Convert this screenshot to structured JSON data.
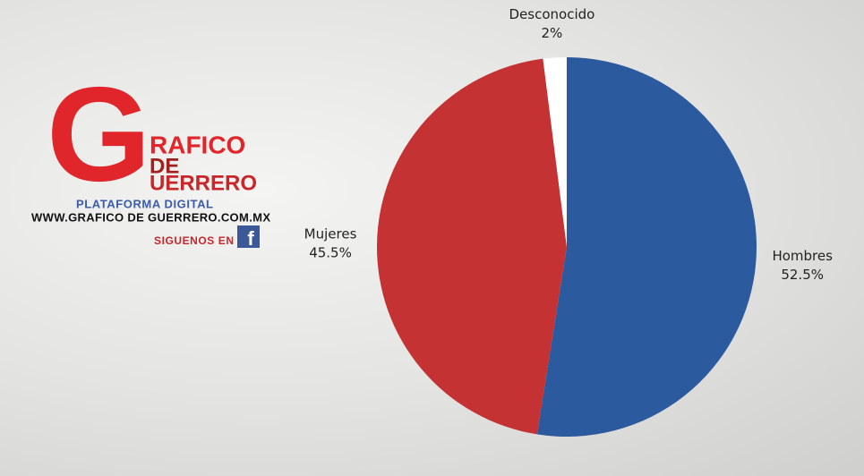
{
  "chart_data": {
    "type": "pie",
    "categories": [
      "Hombres",
      "Mujeres",
      "Desconocido"
    ],
    "values": [
      52.5,
      45.5,
      2
    ],
    "value_labels": [
      "52.5%",
      "45.5%",
      "2%"
    ],
    "colors": [
      "#2c5a9e",
      "#c53234",
      "#ffffff"
    ]
  },
  "logo": {
    "initial": "G",
    "line1": "RAFICO",
    "line2": "DE",
    "line3": "UERRERO",
    "tagline": "PLATAFORMA DIGITAL",
    "url": "WWW.GRAFICO DE GUERRERO.COM.MX",
    "follow": "SIGUENOS EN",
    "icon": "f"
  }
}
